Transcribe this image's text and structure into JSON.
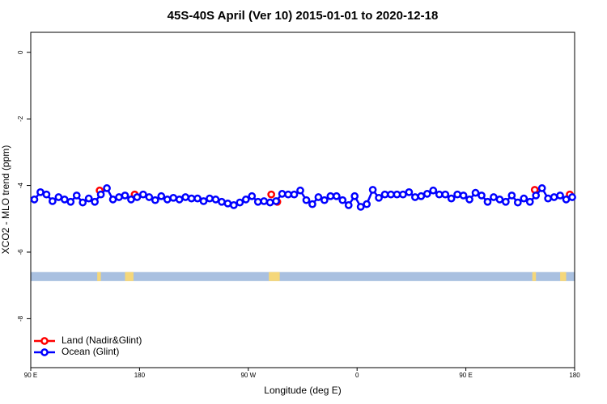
{
  "chart_data": {
    "type": "line",
    "title": "45S-40S April (Ver 10)   2015-01-01 to 2020-12-18",
    "x_label": "Longitude (deg E)",
    "y_label": "XCO2 - MLO trend (ppm)",
    "xlim": [
      90,
      540
    ],
    "xticks": [
      {
        "value": 90,
        "label": "90 E"
      },
      180,
      {
        "value": 270,
        "label": "90 W"
      },
      {
        "value": 360,
        "label": "0"
      },
      {
        "value": 450,
        "label": "90 E"
      },
      {
        "value": 540,
        "label": "180"
      }
    ],
    "ylim": [
      -9.47,
      0.6
    ],
    "yticks": [
      0,
      -2,
      -4,
      -6,
      -8
    ],
    "legend_position": "bottom-left",
    "map_strip": {
      "ylim": [
        -6.87,
        -6.6
      ],
      "ocean_color": "#a9c0e0",
      "land_color": "#f5d77a",
      "land": [
        [
          145,
          148
        ],
        [
          168,
          175
        ],
        [
          287,
          296
        ],
        [
          505,
          508
        ],
        [
          528,
          533
        ]
      ]
    },
    "series": [
      {
        "name": "Land (Nadir&Glint)",
        "color": "#ff0000",
        "x": [
          147,
          176,
          289,
          294,
          507,
          536
        ],
        "values": [
          -4.15,
          -4.27,
          -4.27,
          -4.49,
          -4.13,
          -4.27
        ]
      },
      {
        "name": "Ocean (Glint)",
        "color": "#0000ff",
        "x": [
          93,
          98,
          103,
          108,
          113,
          118,
          123,
          128,
          133,
          138,
          143,
          148,
          153,
          158,
          163,
          168,
          173,
          178,
          183,
          188,
          193,
          198,
          203,
          208,
          213,
          218,
          223,
          228,
          233,
          238,
          243,
          248,
          253,
          258,
          263,
          268,
          273,
          278,
          283,
          288,
          293,
          298,
          303,
          308,
          313,
          318,
          323,
          328,
          333,
          338,
          343,
          348,
          353,
          358,
          363,
          368,
          373,
          378,
          383,
          388,
          393,
          398,
          403,
          408,
          413,
          418,
          423,
          428,
          433,
          438,
          443,
          448,
          453,
          458,
          463,
          468,
          473,
          478,
          483,
          488,
          493,
          498,
          503,
          508,
          513,
          518,
          523,
          528,
          533,
          538
        ],
        "values": [
          -4.42,
          -4.2,
          -4.27,
          -4.47,
          -4.35,
          -4.42,
          -4.49,
          -4.3,
          -4.51,
          -4.39,
          -4.49,
          -4.27,
          -4.08,
          -4.42,
          -4.35,
          -4.3,
          -4.42,
          -4.35,
          -4.27,
          -4.35,
          -4.44,
          -4.32,
          -4.42,
          -4.37,
          -4.42,
          -4.35,
          -4.39,
          -4.39,
          -4.47,
          -4.39,
          -4.42,
          -4.49,
          -4.54,
          -4.59,
          -4.51,
          -4.42,
          -4.32,
          -4.49,
          -4.47,
          -4.51,
          -4.47,
          -4.25,
          -4.27,
          -4.27,
          -4.15,
          -4.44,
          -4.56,
          -4.35,
          -4.44,
          -4.32,
          -4.32,
          -4.44,
          -4.59,
          -4.32,
          -4.64,
          -4.56,
          -4.13,
          -4.37,
          -4.27,
          -4.27,
          -4.27,
          -4.27,
          -4.2,
          -4.35,
          -4.32,
          -4.25,
          -4.15,
          -4.27,
          -4.27,
          -4.39,
          -4.27,
          -4.3,
          -4.42,
          -4.22,
          -4.3,
          -4.49,
          -4.35,
          -4.42,
          -4.49,
          -4.3,
          -4.51,
          -4.39,
          -4.49,
          -4.3,
          -4.08,
          -4.39,
          -4.35,
          -4.3,
          -4.42,
          -4.35
        ]
      }
    ]
  }
}
